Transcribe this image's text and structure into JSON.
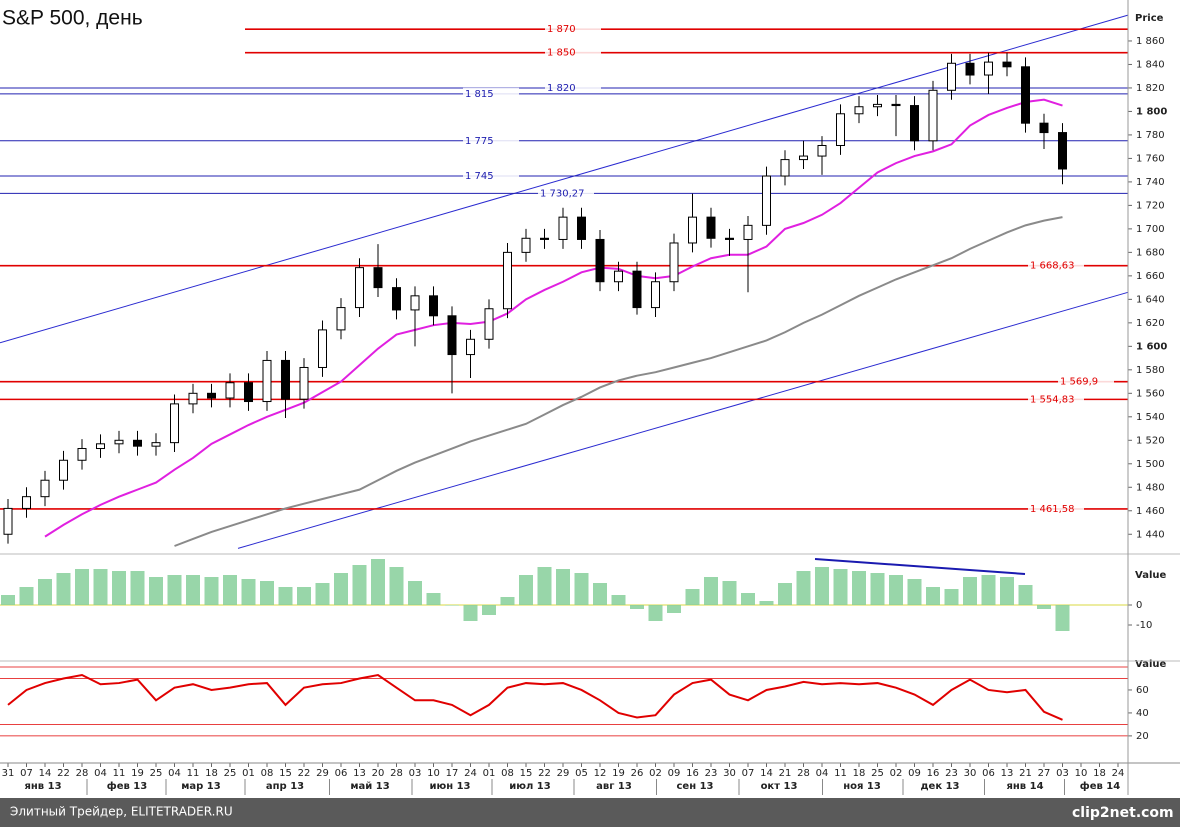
{
  "chart_data": [
    {
      "type": "candlestick",
      "title": "S&P 500, день",
      "y_label": "Price",
      "categories": [
        "31",
        "07",
        "14",
        "22",
        "28",
        "04",
        "11",
        "19",
        "25",
        "04",
        "11",
        "18",
        "25",
        "01",
        "08",
        "15",
        "22",
        "29",
        "06",
        "13",
        "20",
        "28",
        "03",
        "10",
        "17",
        "24",
        "01",
        "08",
        "15",
        "22",
        "29",
        "05",
        "12",
        "19",
        "26",
        "02",
        "09",
        "16",
        "23",
        "30",
        "07",
        "14",
        "21",
        "28",
        "04",
        "11",
        "18",
        "25",
        "02",
        "09",
        "16",
        "23",
        "30",
        "06",
        "13",
        "21",
        "27",
        "03",
        "10",
        "18",
        "24"
      ],
      "months": [
        "янв 13",
        "фев 13",
        "мар 13",
        "апр 13",
        "май 13",
        "июн 13",
        "июл 13",
        "авг 13",
        "сен 13",
        "окт 13",
        "ноя 13",
        "дек 13",
        "янв 14",
        "фев 14"
      ],
      "open": [
        1440,
        1462,
        1472,
        1486,
        1503,
        1513,
        1517,
        1520,
        1515,
        1518,
        1551,
        1560,
        1556,
        1569,
        1553,
        1588,
        1555,
        1582,
        1614,
        1633,
        1667,
        1650,
        1631,
        1643,
        1626,
        1593,
        1606,
        1632,
        1680,
        1692,
        1691,
        1710,
        1691,
        1655,
        1664,
        1633,
        1655,
        1688,
        1710,
        1692,
        1691,
        1703,
        1745,
        1759,
        1762,
        1771,
        1798,
        1804,
        1806,
        1805,
        1775,
        1818,
        1841,
        1831,
        1842,
        1838,
        1790,
        1782,
        null,
        null,
        null
      ],
      "high": [
        1470,
        1480,
        1494,
        1511,
        1521,
        1525,
        1528,
        1528,
        1526,
        1559,
        1568,
        1568,
        1577,
        1577,
        1596,
        1596,
        1590,
        1622,
        1641,
        1675,
        1687,
        1658,
        1651,
        1651,
        1634,
        1614,
        1640,
        1688,
        1700,
        1700,
        1718,
        1718,
        1699,
        1672,
        1672,
        1663,
        1696,
        1730,
        1718,
        1700,
        1711,
        1753,
        1767,
        1775,
        1779,
        1806,
        1813,
        1814,
        1814,
        1813,
        1826,
        1849,
        1849,
        1850,
        1850,
        1846,
        1798,
        1790,
        null,
        null,
        null
      ],
      "low": [
        1432,
        1454,
        1464,
        1478,
        1495,
        1505,
        1509,
        1507,
        1507,
        1510,
        1543,
        1548,
        1548,
        1545,
        1545,
        1539,
        1547,
        1574,
        1606,
        1625,
        1642,
        1623,
        1600,
        1618,
        1560,
        1573,
        1598,
        1624,
        1672,
        1683,
        1683,
        1683,
        1647,
        1647,
        1627,
        1625,
        1647,
        1680,
        1684,
        1677,
        1646,
        1695,
        1737,
        1751,
        1746,
        1763,
        1790,
        1796,
        1779,
        1767,
        1767,
        1810,
        1823,
        1815,
        1830,
        1782,
        1768,
        1738,
        null,
        null,
        null
      ],
      "close": [
        1462,
        1472,
        1486,
        1503,
        1513,
        1517,
        1520,
        1515,
        1518,
        1551,
        1560,
        1556,
        1569,
        1553,
        1588,
        1555,
        1582,
        1614,
        1633,
        1667,
        1650,
        1631,
        1643,
        1626,
        1593,
        1606,
        1632,
        1680,
        1692,
        1691,
        1710,
        1691,
        1655,
        1664,
        1633,
        1655,
        1688,
        1710,
        1692,
        1691,
        1703,
        1745,
        1759,
        1762,
        1771,
        1798,
        1804,
        1806,
        1805,
        1775,
        1818,
        1841,
        1831,
        1842,
        1838,
        1790,
        1782,
        1751,
        null,
        null,
        null
      ],
      "moving_averages": [
        {
          "color": "#e020e0",
          "values": [
            null,
            null,
            1438,
            1448,
            1457,
            1465,
            1472,
            1478,
            1484,
            1495,
            1505,
            1517,
            1525,
            1533,
            1540,
            1546,
            1552,
            1561,
            1570,
            1584,
            1598,
            1610,
            1614,
            1618,
            1620,
            1619,
            1621,
            1628,
            1640,
            1648,
            1655,
            1663,
            1667,
            1666,
            1660,
            1658,
            1660,
            1668,
            1675,
            1678,
            1678,
            1685,
            1700,
            1705,
            1712,
            1722,
            1735,
            1748,
            1756,
            1762,
            1766,
            1772,
            1788,
            1797,
            1803,
            1808,
            1810,
            1805,
            null,
            null,
            null
          ]
        },
        {
          "color": "#8a8a8a",
          "values": [
            null,
            null,
            null,
            null,
            null,
            null,
            null,
            null,
            null,
            1430,
            1436,
            1442,
            1447,
            1452,
            1457,
            1462,
            1466,
            1470,
            1474,
            1478,
            1486,
            1494,
            1501,
            1507,
            1513,
            1519,
            1524,
            1529,
            1534,
            1542,
            1550,
            1557,
            1565,
            1571,
            1575,
            1578,
            1582,
            1586,
            1590,
            1595,
            1600,
            1605,
            1612,
            1620,
            1627,
            1635,
            1643,
            1650,
            1657,
            1663,
            1669,
            1675,
            1683,
            1690,
            1697,
            1703,
            1707,
            1710,
            null,
            null,
            null
          ]
        }
      ],
      "levels": [
        {
          "value": 1870,
          "label": "1 870",
          "color": "#e00000"
        },
        {
          "value": 1850,
          "label": "1 850",
          "color": "#e00000"
        },
        {
          "value": 1820,
          "label": "1 820",
          "color": "#2020b0"
        },
        {
          "value": 1815,
          "label": "1 815",
          "color": "#2020b0"
        },
        {
          "value": 1775,
          "label": "1 775",
          "color": "#2020b0"
        },
        {
          "value": 1745,
          "label": "1 745",
          "color": "#2020b0"
        },
        {
          "value": 1730.27,
          "label": "1 730,27",
          "color": "#2020b0"
        },
        {
          "value": 1668.63,
          "label": "1 668,63",
          "color": "#e00000"
        },
        {
          "value": 1569.9,
          "label": "1 569,9",
          "color": "#e00000"
        },
        {
          "value": 1554.83,
          "label": "1 554,83",
          "color": "#e00000"
        },
        {
          "value": 1461.58,
          "label": "1 461,58",
          "color": "#e00000"
        }
      ],
      "channel": [
        {
          "start": 1603,
          "end": 1882,
          "color": "#2a2ad0"
        },
        {
          "start": 1428,
          "end": 1646,
          "color": "#2a2ad0"
        }
      ],
      "ylim": [
        1430,
        1885
      ],
      "yticks": [
        {
          "value": 1440,
          "label": "1 440"
        },
        {
          "value": 1460,
          "label": "1 460"
        },
        {
          "value": 1480,
          "label": "1 480"
        },
        {
          "value": 1500,
          "label": "1 500"
        },
        {
          "value": 1520,
          "label": "1 520"
        },
        {
          "value": 1540,
          "label": "1 540"
        },
        {
          "value": 1560,
          "label": "1 560"
        },
        {
          "value": 1580,
          "label": "1 580"
        },
        {
          "value": 1600,
          "label": "1 600"
        },
        {
          "value": 1620,
          "label": "1 620"
        },
        {
          "value": 1640,
          "label": "1 640"
        },
        {
          "value": 1660,
          "label": "1 660"
        },
        {
          "value": 1680,
          "label": "1 680"
        },
        {
          "value": 1700,
          "label": "1 700"
        },
        {
          "value": 1720,
          "label": "1 720"
        },
        {
          "value": 1740,
          "label": "1 740"
        },
        {
          "value": 1760,
          "label": "1 760"
        },
        {
          "value": 1780,
          "label": "1 780"
        },
        {
          "value": 1800,
          "label": "1 800"
        },
        {
          "value": 1820,
          "label": "1 820"
        },
        {
          "value": 1840,
          "label": "1 840"
        },
        {
          "value": 1860,
          "label": "1 860"
        }
      ]
    },
    {
      "type": "bar",
      "y_label": "Value",
      "color": "#86cf9a",
      "values": [
        5,
        9,
        13,
        16,
        18,
        18,
        17,
        17,
        14,
        15,
        15,
        14,
        15,
        13,
        12,
        9,
        9,
        11,
        16,
        20,
        23,
        19,
        12,
        6,
        0,
        -8,
        -5,
        4,
        15,
        19,
        18,
        16,
        11,
        5,
        -2,
        -8,
        -4,
        8,
        14,
        12,
        6,
        2,
        11,
        17,
        19,
        18,
        17,
        16,
        15,
        13,
        9,
        8,
        14,
        15,
        14,
        10,
        -2,
        -13,
        null,
        null,
        null
      ],
      "divergence": {
        "start": 23,
        "end": 15.5,
        "color": "#1a1ab0"
      },
      "ylim": [
        -28,
        25
      ],
      "yticks": [
        0,
        -10
      ]
    },
    {
      "type": "line",
      "y_label": "Value",
      "color": "#e00000",
      "values": [
        47,
        60,
        66,
        70,
        73,
        65,
        66,
        69,
        51,
        62,
        65,
        60,
        62,
        65,
        66,
        47,
        62,
        65,
        66,
        70,
        73,
        62,
        51,
        51,
        47,
        38,
        47,
        62,
        66,
        65,
        66,
        60,
        51,
        40,
        36,
        38,
        56,
        66,
        69,
        56,
        51,
        60,
        63,
        67,
        65,
        66,
        65,
        66,
        62,
        56,
        47,
        60,
        69,
        60,
        58,
        60,
        41,
        34,
        null,
        null,
        null
      ],
      "levels": [
        80,
        70,
        30,
        20
      ],
      "ylim": [
        -1,
        86
      ],
      "yticks": [
        20,
        40,
        60
      ]
    }
  ],
  "footer": {
    "source": "Элитный Трейдер, ELITETRADER.RU",
    "watermark": "clip2net.com"
  }
}
